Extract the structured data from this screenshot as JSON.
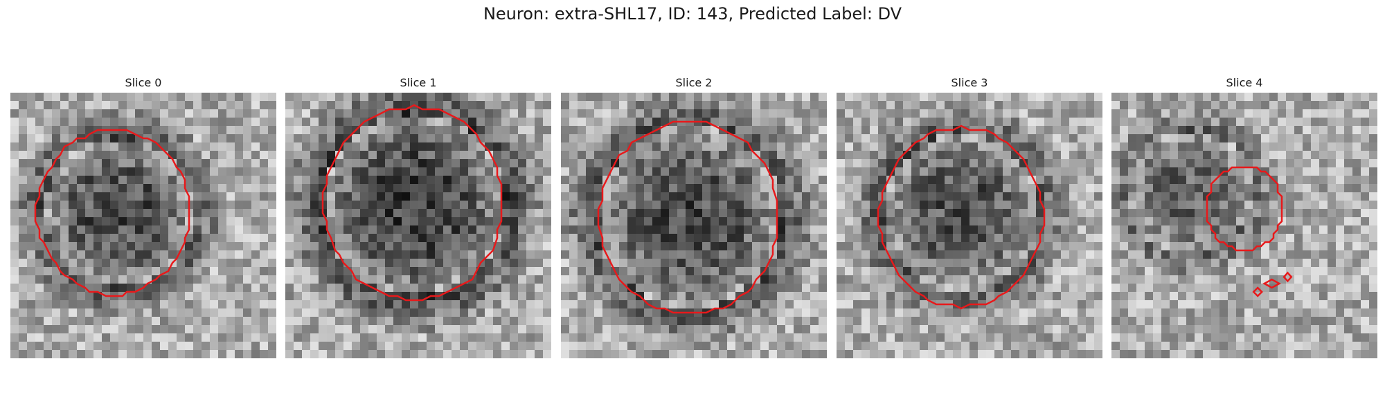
{
  "figure": {
    "title": "Neuron: extra-SHL17, ID: 143, Predicted Label: DV"
  },
  "panels": [
    {
      "title": "Slice 0"
    },
    {
      "title": "Slice 1"
    },
    {
      "title": "Slice 2"
    },
    {
      "title": "Slice 3"
    },
    {
      "title": "Slice 4"
    }
  ],
  "colors": {
    "contour": "#e8191b",
    "background": "#ffffff"
  }
}
